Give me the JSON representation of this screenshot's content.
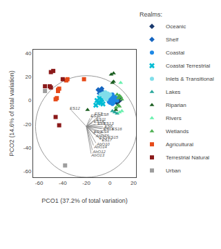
{
  "chart_data": {
    "type": "scatter",
    "xlabel": "PCO1 (37.2% of total variation)",
    "ylabel": "PCO2 (14.6% of total variation)",
    "xlim": [
      -65,
      22
    ],
    "ylim": [
      -65,
      43
    ],
    "xticks": [
      -60,
      -40,
      -20,
      0,
      20
    ],
    "yticks": [
      -60,
      -40,
      -20,
      0,
      20,
      40
    ],
    "grid": false,
    "legend": "right",
    "legend_title": "Realms:",
    "circle": {
      "center": [
        -20,
        -22
      ],
      "radius": 43,
      "color": "#999999"
    },
    "arrows": {
      "origin": [
        -20,
        -22
      ],
      "color": "#888888",
      "vectors": [
        {
          "label": "ES12",
          "tip": [
            -33,
            -8
          ]
        },
        {
          "label": "ES7",
          "tip": [
            -14,
            -13
          ]
        },
        {
          "label": "ES8",
          "tip": [
            -9,
            -13
          ]
        },
        {
          "label": "ES10",
          "tip": [
            -17,
            -15
          ]
        },
        {
          "label": "ES11",
          "tip": [
            -13,
            -17
          ]
        },
        {
          "label": "ES14",
          "tip": [
            -15,
            -19
          ]
        },
        {
          "label": "ES5",
          "tip": [
            -12,
            -20
          ]
        },
        {
          "label": "ES13",
          "tip": [
            -7,
            -20
          ]
        },
        {
          "label": "ES6",
          "tip": [
            -6,
            -22
          ]
        },
        {
          "label": "ES18",
          "tip": [
            -7,
            -24
          ]
        },
        {
          "label": "ES16",
          "tip": [
            0,
            -24
          ]
        },
        {
          "label": "ES9",
          "tip": [
            -15,
            -26
          ]
        },
        {
          "label": "ES4",
          "tip": [
            -9,
            -26
          ]
        },
        {
          "label": "AbOT5",
          "tip": [
            -13,
            -29
          ]
        },
        {
          "label": "ES3",
          "tip": [
            -10,
            -31
          ]
        },
        {
          "label": "ES15",
          "tip": [
            -3,
            -31
          ]
        },
        {
          "label": "ES17",
          "tip": [
            -8,
            -33
          ]
        },
        {
          "label": "AbO10",
          "tip": [
            -12,
            -36
          ]
        },
        {
          "label": "AbO14",
          "tip": [
            -14,
            -38
          ]
        },
        {
          "label": "AbO12",
          "tip": [
            -15,
            -42
          ]
        },
        {
          "label": "AbO13",
          "tip": [
            -16,
            -45
          ]
        }
      ]
    },
    "series": [
      {
        "name": "Oceanic",
        "marker": "diamond",
        "color": "#1a3a6e",
        "x": [
          4,
          5,
          6,
          7,
          3,
          8,
          9
        ],
        "values": [
          1,
          -1,
          -2,
          2,
          3,
          0,
          1
        ]
      },
      {
        "name": "Shelf",
        "marker": "diamond",
        "color": "#1565c0",
        "x": [
          -10,
          -8,
          -5,
          -6,
          -9,
          -7
        ],
        "values": [
          9,
          8,
          6,
          7,
          6,
          10
        ]
      },
      {
        "name": "Coastal",
        "marker": "circle",
        "color": "#1e88e5",
        "x": [
          0,
          1,
          2,
          3,
          1,
          -1,
          2,
          4,
          -2,
          0,
          -3,
          5,
          -4,
          3,
          6,
          1,
          4,
          2,
          -1
        ],
        "values": [
          1,
          3,
          2,
          0,
          -1,
          2,
          5,
          1,
          1,
          -2,
          3,
          2,
          4,
          -2,
          0,
          0,
          3,
          -3,
          -1
        ]
      },
      {
        "name": "Coastal Terrestrial",
        "marker": "x",
        "color": "#00bcd4",
        "x": [
          -9,
          -11,
          -12,
          -6,
          -8,
          -7,
          -10
        ],
        "values": [
          2,
          0,
          -4,
          -3,
          -2,
          1,
          -2
        ]
      },
      {
        "name": "Inlets & Transitional",
        "marker": "circle",
        "color": "#80deea",
        "x": [
          -5,
          -4,
          -3,
          -2,
          -1,
          -6,
          0,
          -4,
          -8,
          -3,
          -5,
          -2
        ],
        "values": [
          4,
          2,
          5,
          3,
          4,
          6,
          5,
          7,
          5,
          1,
          3,
          6
        ]
      },
      {
        "name": "Lakes",
        "marker": "triangle-up",
        "color": "#26a69a",
        "x": [
          2,
          4,
          6
        ],
        "values": [
          -9,
          -10,
          -11
        ]
      },
      {
        "name": "Riparian",
        "marker": "triangle-up",
        "color": "#1b5e20",
        "x": [
          1,
          3,
          2,
          -19,
          5,
          3
        ],
        "values": [
          22,
          23,
          15,
          -8,
          -8,
          16
        ]
      },
      {
        "name": "Rivers",
        "marker": "triangle-up",
        "color": "#69f0ae",
        "x": [
          9,
          8,
          10
        ],
        "values": [
          15,
          -10,
          -9
        ]
      },
      {
        "name": "Wetlands",
        "marker": "triangle-up",
        "color": "#4caf50",
        "x": [
          6,
          7,
          8,
          5,
          9,
          10,
          7,
          8
        ],
        "values": [
          5,
          -4,
          -5,
          -6,
          3,
          1,
          2,
          4
        ]
      },
      {
        "name": "Agricultural",
        "marker": "square",
        "color": "#e64a19",
        "x": [
          -44,
          -44,
          -45,
          -46,
          -37,
          -36,
          -22,
          -43
        ],
        "values": [
          9,
          8,
          2,
          1,
          17,
          18,
          18,
          10
        ]
      },
      {
        "name": "Terrestrial Natural",
        "marker": "square",
        "color": "#8b1a1a",
        "x": [
          -50,
          -48,
          -40,
          -46,
          -43,
          -50,
          -51,
          -55
        ],
        "values": [
          24,
          25,
          18,
          -14,
          -21,
          11,
          12,
          12
        ]
      },
      {
        "name": "Urban",
        "marker": "square",
        "color": "#9e9e9e",
        "x": [
          -55,
          -38
        ],
        "values": [
          8,
          -55
        ]
      }
    ]
  }
}
